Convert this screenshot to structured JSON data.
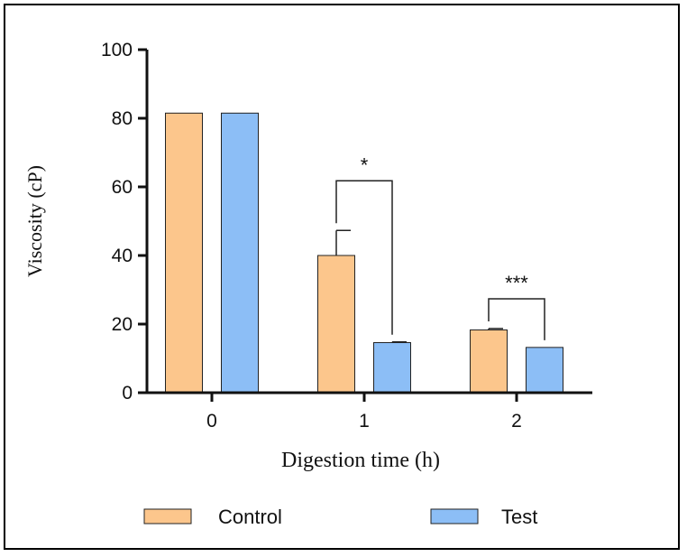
{
  "chart_data": {
    "type": "bar",
    "title": "",
    "xlabel": "Digestion time (h)",
    "ylabel": "Viscosity (cP)",
    "ylim": [
      0,
      100
    ],
    "yticks": [
      0,
      20,
      40,
      60,
      80,
      100
    ],
    "categories": [
      "0",
      "1",
      "2"
    ],
    "series": [
      {
        "name": "Control",
        "color": "#FCC68C",
        "values": [
          81.5,
          40,
          18.3
        ],
        "errors": [
          0,
          7.3,
          0.4
        ]
      },
      {
        "name": "Test",
        "color": "#8CBEF6",
        "values": [
          81.5,
          14.6,
          13.2
        ],
        "errors": [
          0,
          0.2,
          0
        ]
      }
    ],
    "significance": [
      {
        "category": "1",
        "label": "*"
      },
      {
        "category": "2",
        "label": "***"
      }
    ],
    "legend": {
      "position": "bottom",
      "items": [
        "Control",
        "Test"
      ]
    }
  }
}
